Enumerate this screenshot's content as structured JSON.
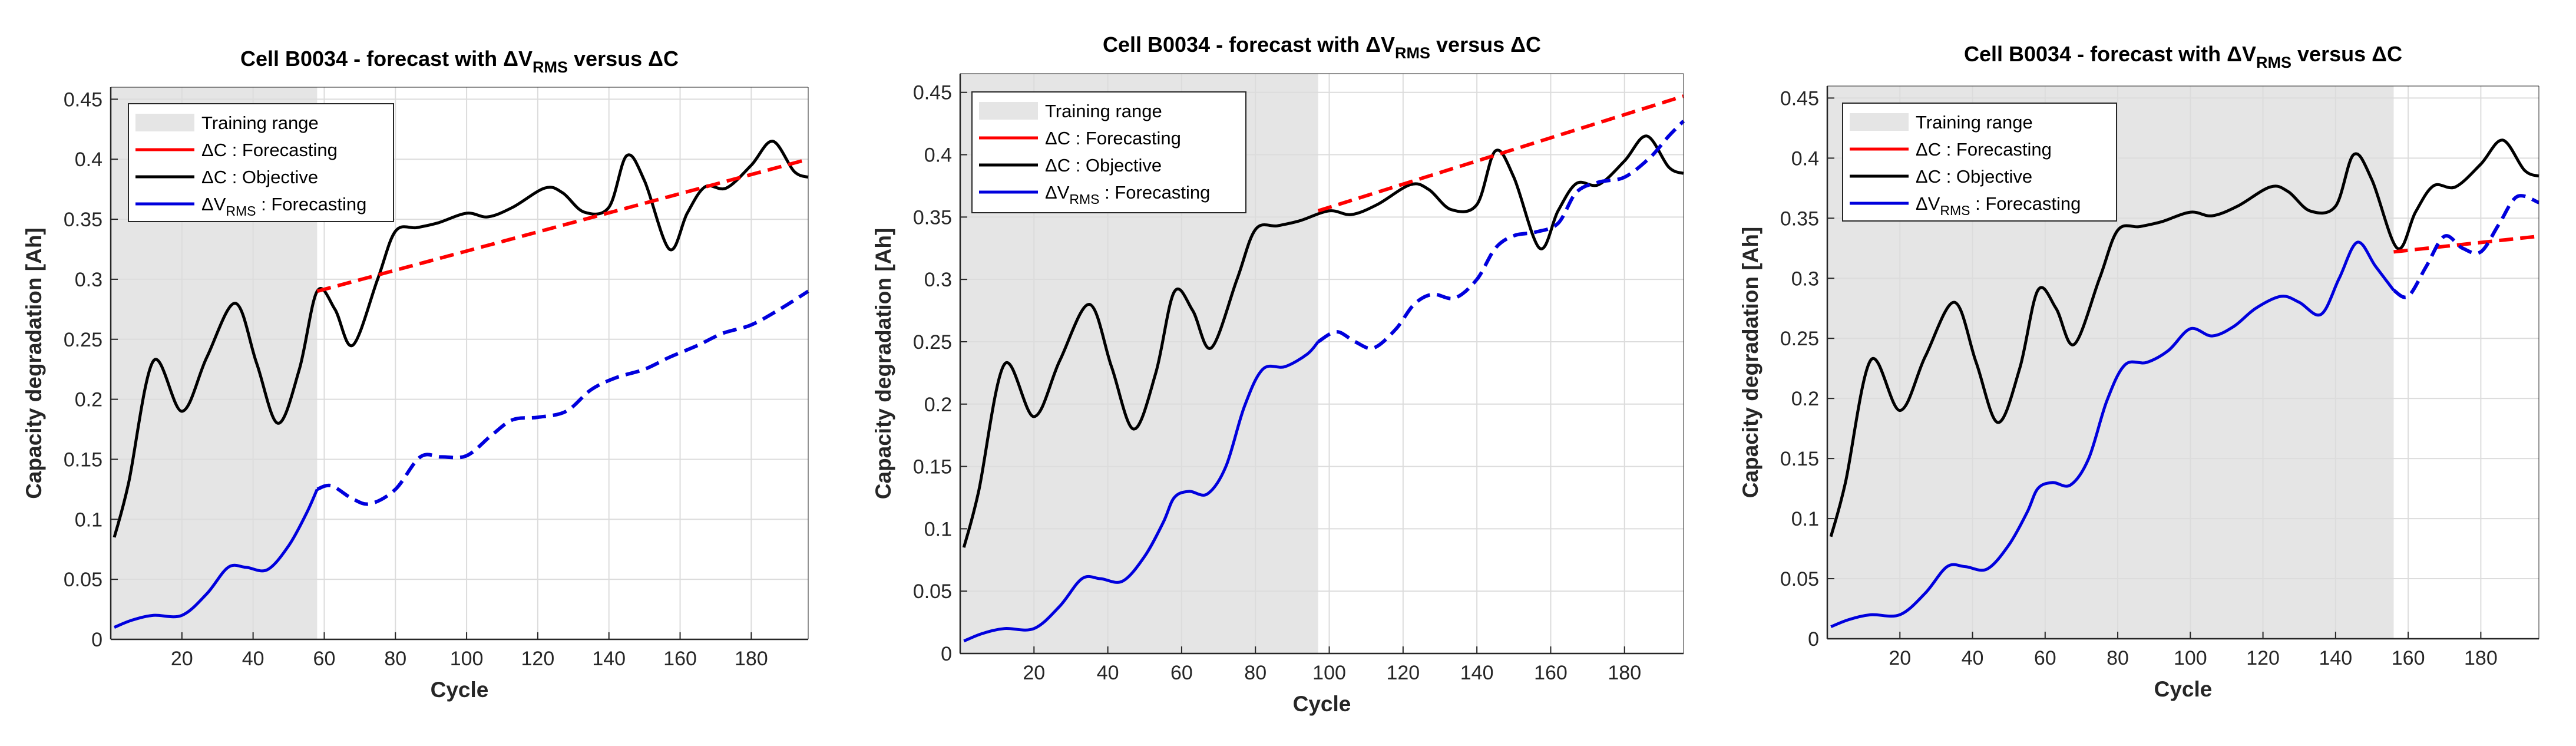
{
  "figure": {
    "background": "#ffffff"
  },
  "colors": {
    "forecast_dc": "#ff0000",
    "objective": "#000000",
    "forecast_vrms": "#0000dd",
    "training_fill": "#e5e5e5",
    "grid": "#dcdcdc",
    "axis": "#262626"
  },
  "chart_data": [
    {
      "type": "line",
      "title": "Cell B0034 - forecast with ΔVRMS versus ΔC",
      "title_parts": {
        "pre": "Cell B0034 - forecast with ΔV",
        "sub": "RMS",
        "post": " versus ΔC"
      },
      "xlabel": "Cycle",
      "ylabel": "Capacity degradation [Ah]",
      "xlim": [
        0,
        196
      ],
      "ylim": [
        0,
        0.46
      ],
      "xticks": [
        20,
        40,
        60,
        80,
        100,
        120,
        140,
        160,
        180
      ],
      "yticks": [
        0,
        0.05,
        0.1,
        0.15,
        0.2,
        0.25,
        0.3,
        0.35,
        0.4,
        0.45
      ],
      "ytick_labels": [
        "0",
        "0.05",
        "0.1",
        "0.15",
        "0.2",
        "0.25",
        "0.3",
        "0.35",
        "0.4",
        "0.45"
      ],
      "grid": true,
      "legend_position": "top-left",
      "training_range": [
        0,
        58
      ],
      "legend": [
        {
          "key": "training",
          "label": "Training range"
        },
        {
          "key": "forecast_dc",
          "label": "ΔC : Forecasting"
        },
        {
          "key": "objective",
          "label": "ΔC : Objective"
        },
        {
          "key": "forecast_vrms",
          "label_pre": "ΔV",
          "label_sub": "RMS",
          "label_post": " : Forecasting"
        }
      ],
      "series": [
        {
          "name": "ΔC : Objective",
          "style": "solid",
          "color_key": "objective",
          "x": [
            1,
            5,
            12,
            20,
            27,
            35,
            41,
            47,
            53,
            58,
            63,
            68,
            75,
            80,
            86,
            92,
            100,
            106,
            113,
            122,
            127,
            133,
            140,
            145,
            150,
            157,
            162,
            167,
            173,
            180,
            186,
            192,
            196
          ],
          "y": [
            0.085,
            0.13,
            0.232,
            0.19,
            0.235,
            0.28,
            0.23,
            0.18,
            0.225,
            0.29,
            0.275,
            0.245,
            0.3,
            0.34,
            0.343,
            0.347,
            0.355,
            0.352,
            0.36,
            0.376,
            0.372,
            0.356,
            0.36,
            0.403,
            0.382,
            0.325,
            0.355,
            0.377,
            0.376,
            0.395,
            0.415,
            0.39,
            0.385
          ]
        },
        {
          "name": "ΔV_RMS : Forecasting (training part)",
          "style": "solid",
          "color_key": "forecast_vrms",
          "x": [
            1,
            6,
            12,
            20,
            27,
            33,
            38,
            44,
            50,
            55,
            58
          ],
          "y": [
            0.01,
            0.016,
            0.02,
            0.02,
            0.038,
            0.06,
            0.06,
            0.058,
            0.078,
            0.105,
            0.125
          ]
        },
        {
          "name": "ΔC : Forecasting",
          "style": "dashed",
          "color_key": "forecast_dc",
          "x": [
            58,
            196
          ],
          "y": [
            0.29,
            0.4
          ]
        },
        {
          "name": "ΔV_RMS : Forecasting",
          "style": "dashed",
          "color_key": "forecast_vrms",
          "x": [
            58,
            62,
            68,
            73,
            80,
            87,
            93,
            100,
            107,
            113,
            120,
            128,
            135,
            142,
            150,
            157,
            165,
            172,
            180,
            188,
            196
          ],
          "y": [
            0.125,
            0.128,
            0.117,
            0.113,
            0.125,
            0.152,
            0.152,
            0.153,
            0.17,
            0.183,
            0.185,
            0.19,
            0.208,
            0.218,
            0.225,
            0.235,
            0.245,
            0.255,
            0.262,
            0.275,
            0.29
          ]
        }
      ]
    },
    {
      "type": "line",
      "title": "Cell B0034 - forecast with ΔVRMS versus ΔC",
      "title_parts": {
        "pre": "Cell B0034 - forecast with ΔV",
        "sub": "RMS",
        "post": " versus ΔC"
      },
      "xlabel": "Cycle",
      "ylabel": "Capacity degradation [Ah]",
      "xlim": [
        0,
        196
      ],
      "ylim": [
        0,
        0.465
      ],
      "xticks": [
        20,
        40,
        60,
        80,
        100,
        120,
        140,
        160,
        180
      ],
      "yticks": [
        0,
        0.05,
        0.1,
        0.15,
        0.2,
        0.25,
        0.3,
        0.35,
        0.4,
        0.45
      ],
      "ytick_labels": [
        "0",
        "0.05",
        "0.1",
        "0.15",
        "0.2",
        "0.25",
        "0.3",
        "0.35",
        "0.4",
        "0.45"
      ],
      "grid": true,
      "legend_position": "top-left",
      "training_range": [
        0,
        97
      ],
      "legend": [
        {
          "key": "training",
          "label": "Training range"
        },
        {
          "key": "forecast_dc",
          "label": "ΔC : Forecasting"
        },
        {
          "key": "objective",
          "label": "ΔC : Objective"
        },
        {
          "key": "forecast_vrms",
          "label_pre": "ΔV",
          "label_sub": "RMS",
          "label_post": " : Forecasting"
        }
      ],
      "series": [
        {
          "name": "ΔC : Objective",
          "style": "solid",
          "color_key": "objective",
          "x": [
            1,
            5,
            12,
            20,
            27,
            35,
            41,
            47,
            53,
            58,
            63,
            68,
            75,
            80,
            86,
            92,
            100,
            106,
            113,
            122,
            127,
            133,
            140,
            145,
            150,
            157,
            162,
            167,
            173,
            180,
            186,
            192,
            196
          ],
          "y": [
            0.085,
            0.13,
            0.232,
            0.19,
            0.235,
            0.28,
            0.23,
            0.18,
            0.225,
            0.29,
            0.275,
            0.245,
            0.3,
            0.34,
            0.343,
            0.347,
            0.355,
            0.352,
            0.36,
            0.376,
            0.372,
            0.356,
            0.36,
            0.403,
            0.382,
            0.325,
            0.355,
            0.377,
            0.376,
            0.395,
            0.415,
            0.39,
            0.385
          ]
        },
        {
          "name": "ΔV_RMS : Forecasting (training part)",
          "style": "solid",
          "color_key": "forecast_vrms",
          "x": [
            1,
            6,
            12,
            20,
            27,
            33,
            38,
            44,
            50,
            55,
            58,
            62,
            67,
            72,
            77,
            82,
            88,
            94,
            97
          ],
          "y": [
            0.01,
            0.016,
            0.02,
            0.02,
            0.038,
            0.06,
            0.06,
            0.058,
            0.078,
            0.105,
            0.125,
            0.13,
            0.128,
            0.15,
            0.198,
            0.228,
            0.23,
            0.24,
            0.25
          ]
        },
        {
          "name": "ΔC : Forecasting",
          "style": "dashed",
          "color_key": "forecast_dc",
          "x": [
            97,
            196
          ],
          "y": [
            0.355,
            0.447
          ]
        },
        {
          "name": "ΔV_RMS : Forecasting",
          "style": "dashed",
          "color_key": "forecast_vrms",
          "x": [
            97,
            102,
            107,
            112,
            118,
            123,
            128,
            134,
            140,
            145,
            150,
            156,
            162,
            167,
            173,
            180,
            187,
            192,
            196
          ],
          "y": [
            0.25,
            0.258,
            0.25,
            0.245,
            0.26,
            0.28,
            0.288,
            0.285,
            0.3,
            0.325,
            0.335,
            0.338,
            0.345,
            0.37,
            0.378,
            0.382,
            0.398,
            0.415,
            0.427
          ]
        }
      ]
    },
    {
      "type": "line",
      "title": "Cell B0034 - forecast with ΔVRMS versus ΔC",
      "title_parts": {
        "pre": "Cell B0034 - forecast with ΔV",
        "sub": "RMS",
        "post": " versus ΔC"
      },
      "xlabel": "Cycle",
      "ylabel": "Capacity degradation [Ah]",
      "xlim": [
        0,
        196
      ],
      "ylim": [
        0,
        0.46
      ],
      "xticks": [
        20,
        40,
        60,
        80,
        100,
        120,
        140,
        160,
        180
      ],
      "yticks": [
        0,
        0.05,
        0.1,
        0.15,
        0.2,
        0.25,
        0.3,
        0.35,
        0.4,
        0.45
      ],
      "ytick_labels": [
        "0",
        "0.05",
        "0.1",
        "0.15",
        "0.2",
        "0.25",
        "0.3",
        "0.35",
        "0.4",
        "0.45"
      ],
      "grid": true,
      "legend_position": "top-left",
      "training_range": [
        0,
        156
      ],
      "legend": [
        {
          "key": "training",
          "label": "Training range"
        },
        {
          "key": "forecast_dc",
          "label": "ΔC : Forecasting"
        },
        {
          "key": "objective",
          "label": "ΔC : Objective"
        },
        {
          "key": "forecast_vrms",
          "label_pre": "ΔV",
          "label_sub": "RMS",
          "label_post": " : Forecasting"
        }
      ],
      "series": [
        {
          "name": "ΔC : Objective",
          "style": "solid",
          "color_key": "objective",
          "x": [
            1,
            5,
            12,
            20,
            27,
            35,
            41,
            47,
            53,
            58,
            63,
            68,
            75,
            80,
            86,
            92,
            100,
            106,
            113,
            122,
            127,
            133,
            140,
            145,
            150,
            157,
            162,
            167,
            173,
            180,
            186,
            192,
            196
          ],
          "y": [
            0.085,
            0.13,
            0.232,
            0.19,
            0.235,
            0.28,
            0.23,
            0.18,
            0.225,
            0.29,
            0.275,
            0.245,
            0.3,
            0.34,
            0.343,
            0.347,
            0.355,
            0.352,
            0.36,
            0.376,
            0.372,
            0.356,
            0.36,
            0.403,
            0.382,
            0.325,
            0.355,
            0.377,
            0.376,
            0.395,
            0.415,
            0.39,
            0.385
          ]
        },
        {
          "name": "ΔV_RMS : Forecasting (training part)",
          "style": "solid",
          "color_key": "forecast_vrms",
          "x": [
            1,
            6,
            12,
            20,
            27,
            33,
            38,
            44,
            50,
            55,
            58,
            62,
            67,
            72,
            77,
            82,
            88,
            94,
            100,
            106,
            112,
            118,
            125,
            130,
            136,
            141,
            146,
            151,
            156
          ],
          "y": [
            0.01,
            0.016,
            0.02,
            0.02,
            0.038,
            0.06,
            0.06,
            0.058,
            0.078,
            0.105,
            0.125,
            0.13,
            0.128,
            0.15,
            0.198,
            0.228,
            0.23,
            0.24,
            0.258,
            0.252,
            0.26,
            0.275,
            0.285,
            0.28,
            0.27,
            0.3,
            0.33,
            0.31,
            0.29
          ]
        },
        {
          "name": "ΔC : Forecasting",
          "style": "dashed",
          "color_key": "forecast_dc",
          "x": [
            156,
            196
          ],
          "y": [
            0.322,
            0.335
          ]
        },
        {
          "name": "ΔV_RMS : Forecasting",
          "style": "dashed",
          "color_key": "forecast_vrms",
          "x": [
            156,
            160,
            165,
            170,
            175,
            180,
            185,
            190,
            196
          ],
          "y": [
            0.29,
            0.285,
            0.31,
            0.335,
            0.325,
            0.322,
            0.345,
            0.368,
            0.363
          ]
        }
      ]
    }
  ]
}
